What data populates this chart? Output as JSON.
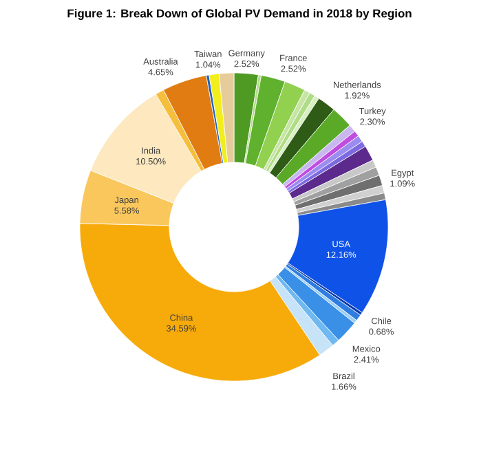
{
  "chart_data": {
    "type": "donut",
    "title": "Figure 1: Break Down of Global PV Demand in 2018 by Region",
    "categories": [
      "Germany",
      null,
      "France",
      null,
      null,
      null,
      null,
      "Netherlands",
      "Turkey",
      null,
      null,
      null,
      null,
      null,
      null,
      null,
      "Egypt",
      null,
      null,
      "USA",
      null,
      "Chile",
      null,
      "Mexico",
      null,
      "Brazil",
      "China",
      "Japan",
      "India",
      null,
      "Australia",
      null,
      "Taiwan",
      null
    ],
    "values": [
      2.52,
      0.3,
      2.52,
      2.2,
      0.6,
      0.6,
      0.5,
      1.92,
      2.3,
      0.8,
      0.6,
      0.7,
      0.6,
      1.6,
      0.8,
      0.9,
      1.09,
      0.8,
      0.7,
      12.16,
      0.3,
      0.68,
      0.35,
      2.41,
      0.8,
      1.66,
      34.59,
      5.58,
      10.5,
      0.9,
      4.65,
      0.3,
      1.04,
      1.53
    ],
    "value_labels": [
      "2.52%",
      null,
      "2.52%",
      null,
      null,
      null,
      null,
      "1.92%",
      "2.30%",
      null,
      null,
      null,
      null,
      null,
      null,
      null,
      "1.09%",
      null,
      null,
      "12.16%",
      null,
      "0.68%",
      null,
      "2.41%",
      null,
      "1.66%",
      "34.59%",
      "5.58%",
      "10.50%",
      null,
      "4.65%",
      null,
      "1.04%",
      null
    ],
    "colors": [
      "#4e9a22",
      "#b5dc8a",
      "#5fb12e",
      "#92d050",
      "#c6e5a5",
      "#b0dc85",
      "#d8efc2",
      "#2e5c16",
      "#5aaa28",
      "#c9b8f0",
      "#c04de0",
      "#9b8cf0",
      "#7b6ae0",
      "#5b2a8c",
      "#c8c8c8",
      "#a0a0a0",
      "#6f6f6f",
      "#d0d0d0",
      "#8a8a8a",
      "#0f52e8",
      "#0b3aa8",
      "#2f7de0",
      "#9ccff5",
      "#3a8fe6",
      "#6fb8f0",
      "#c6e3f8",
      "#f7ab0a",
      "#f9c75c",
      "#fde8bf",
      "#f5be3c",
      "#e07c12",
      "#2060c0",
      "#f2ee1e",
      "#e6cc9a"
    ]
  }
}
